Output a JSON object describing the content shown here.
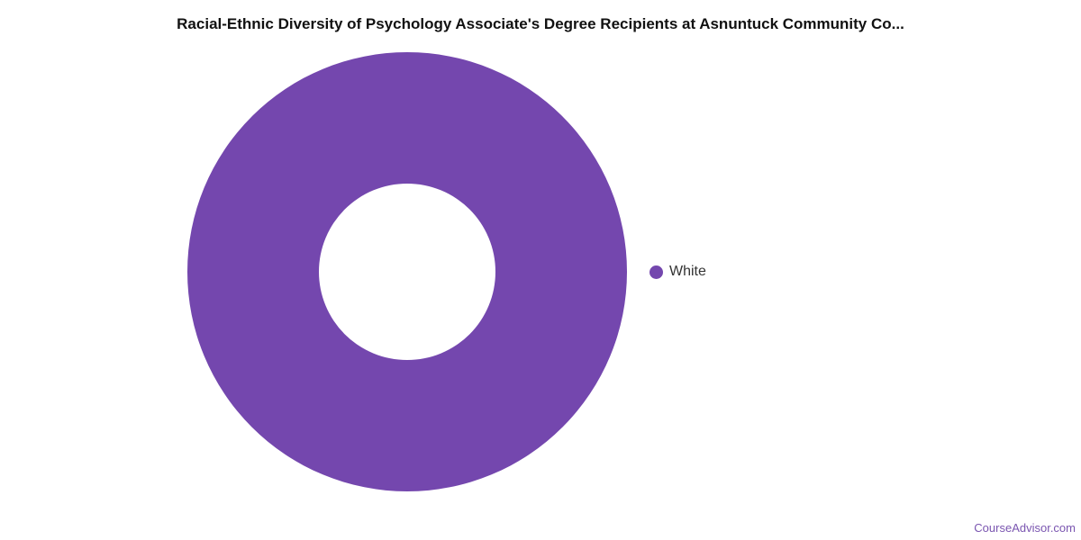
{
  "chart_data": {
    "type": "pie",
    "donut": true,
    "title": "Racial-Ethnic Diversity of Psychology Associate's Degree Recipients at Asnuntuck Community Co...",
    "slices": [
      {
        "label": "White",
        "value": 100,
        "color": "#7447ae"
      }
    ],
    "legend_position": "right"
  },
  "footer": {
    "credit": "CourseAdvisor.com"
  }
}
